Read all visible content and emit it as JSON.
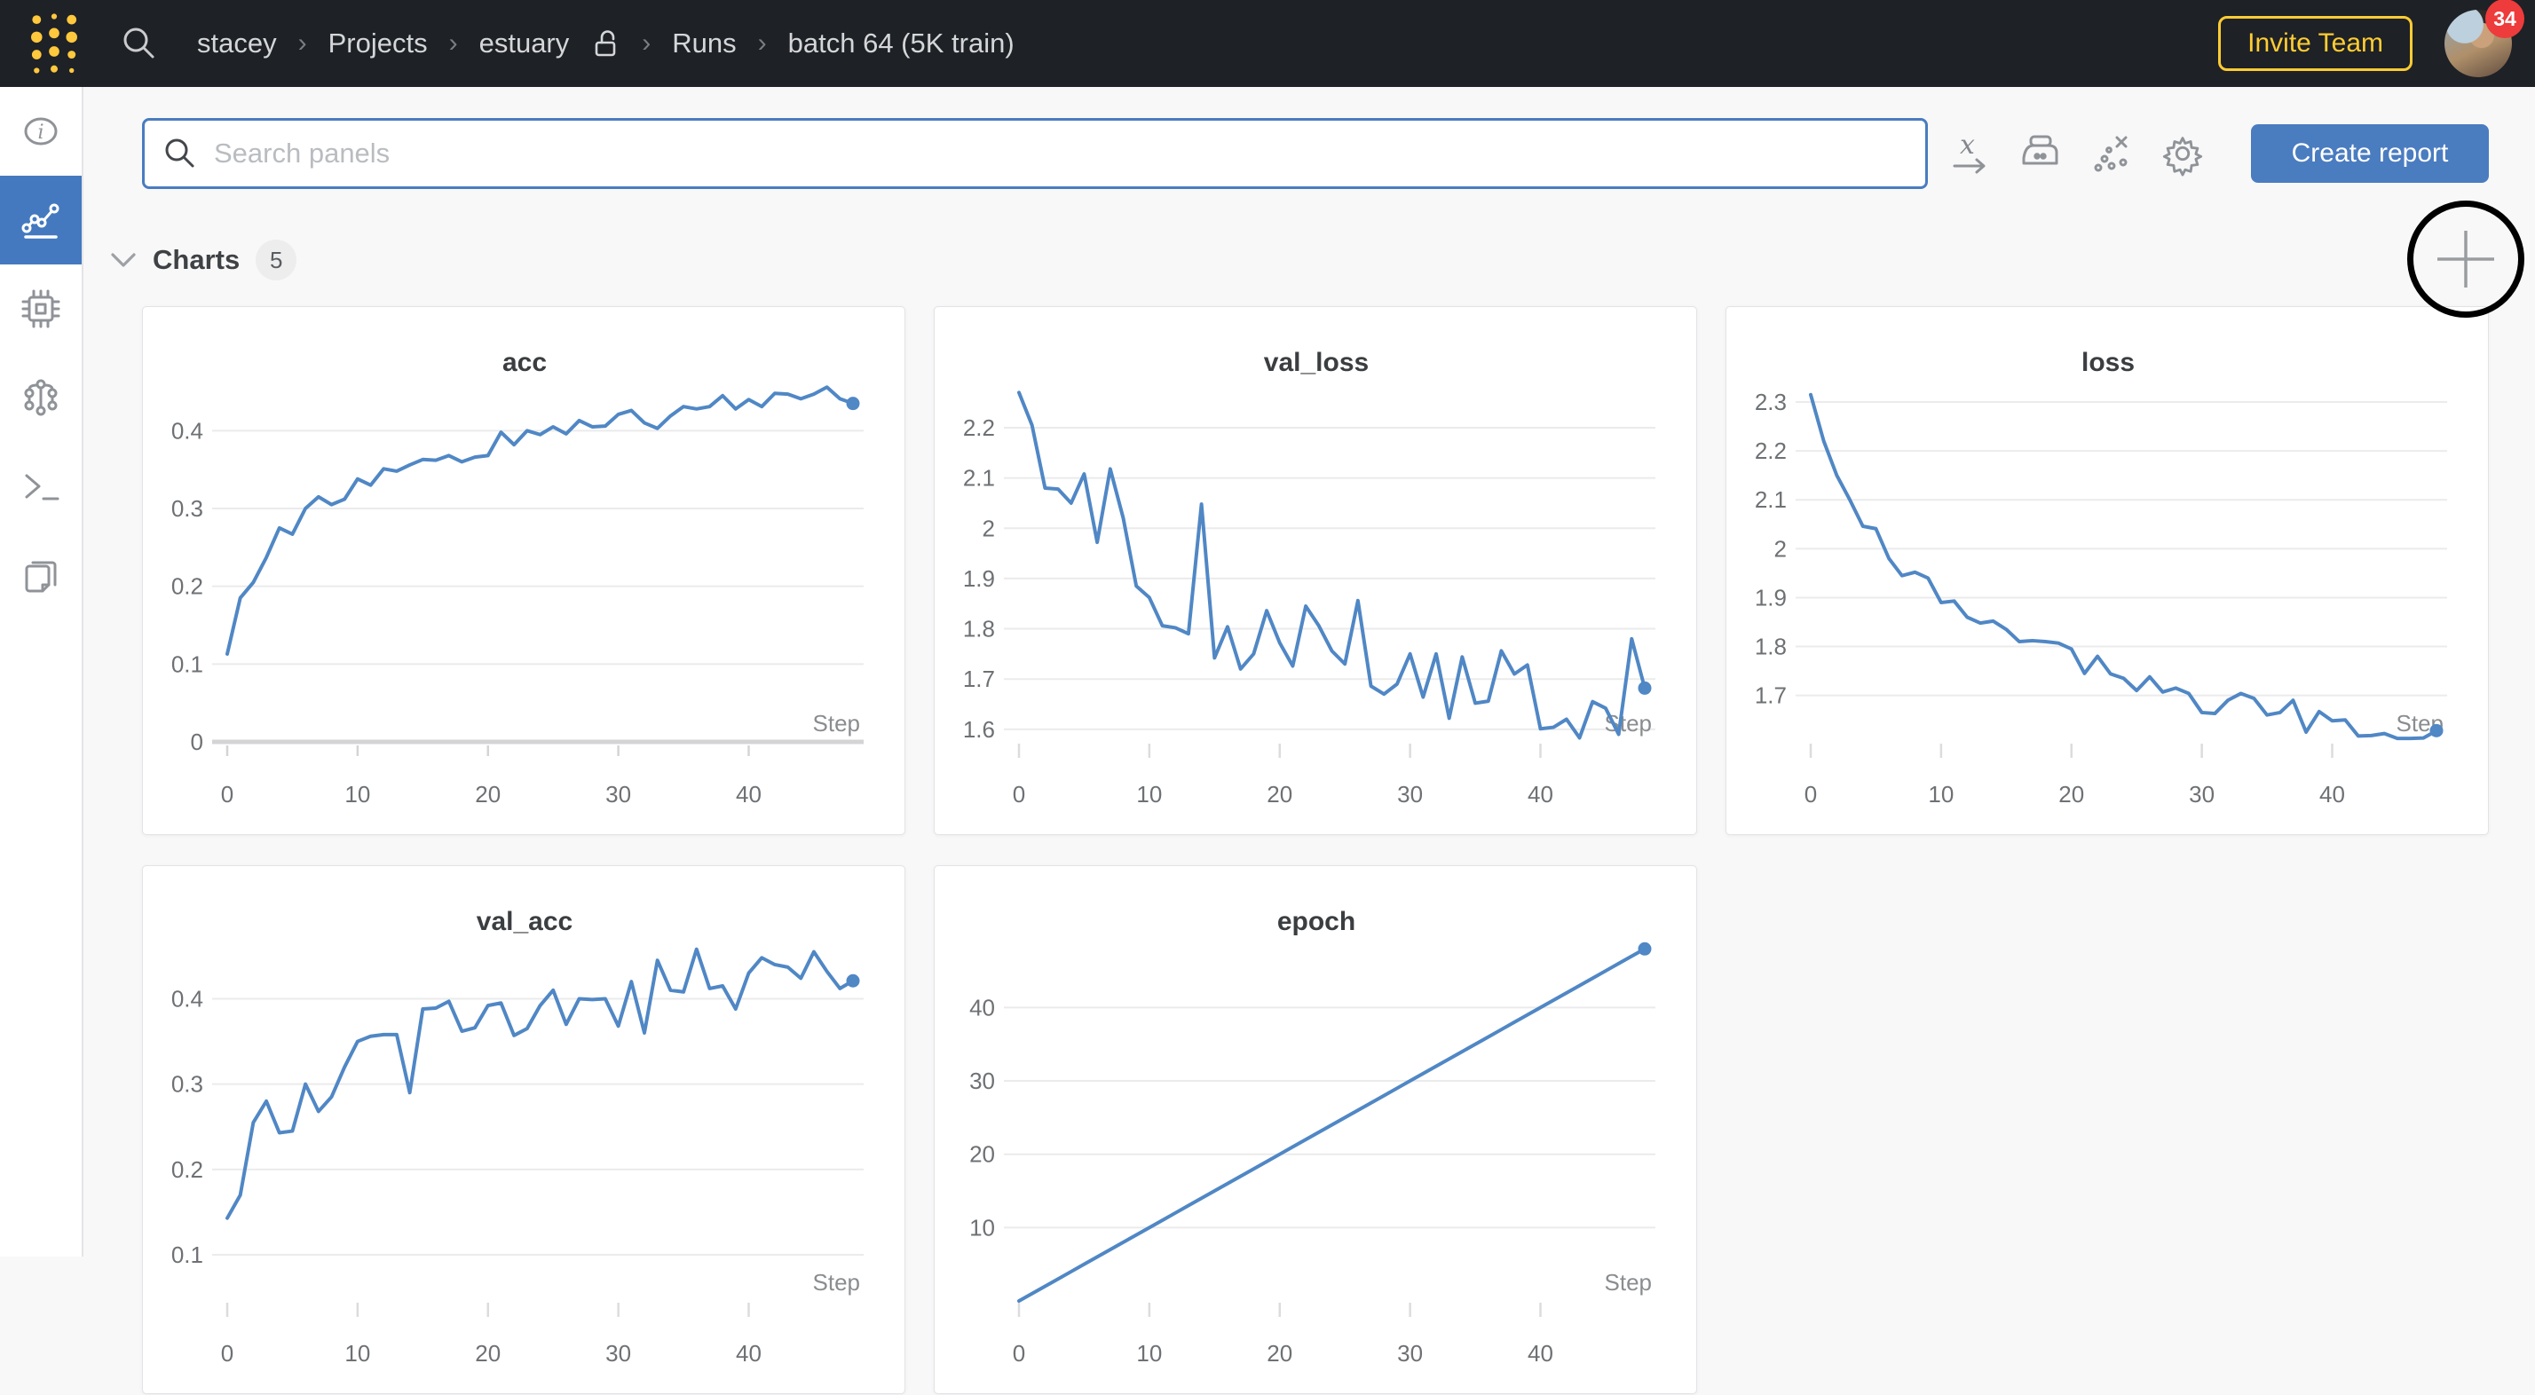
{
  "navbar": {
    "breadcrumb": [
      "stacey",
      "Projects",
      "estuary",
      "Runs",
      "batch 64 (5K train)"
    ],
    "separator": "›",
    "invite_button_label": "Invite Team",
    "notification_count": "34"
  },
  "toolbar": {
    "search_placeholder": "Search panels",
    "create_report_label": "Create report",
    "icon_names": [
      "x-axis",
      "smoothing",
      "outliers",
      "panel-settings"
    ]
  },
  "charts_section": {
    "title": "Charts",
    "panel_count": "5"
  },
  "sidebar": {
    "items": [
      "info",
      "charts",
      "system",
      "model",
      "logs",
      "files"
    ],
    "selected": "charts"
  },
  "colors": {
    "navbar_bg": "#1e2126",
    "brand_gold": "#ffcc33",
    "badge_red": "#ee3b3b",
    "accent_blue": "#4a7cc0",
    "chart_line_blue": "#5087c5",
    "content_bg": "#f8f8f9"
  },
  "chart_data": [
    {
      "type": "line",
      "title": "acc",
      "xlabel": "Step",
      "x_start": 0,
      "x_end": 48,
      "xticks": [
        0,
        10,
        20,
        30,
        40
      ],
      "ylim": [
        0,
        0.462
      ],
      "yticks": [
        0,
        0.1,
        0.2,
        0.3,
        0.4
      ],
      "baseline": 0,
      "grid": true,
      "legend": "none",
      "end_dot": true,
      "values": [
        0.113,
        0.185,
        0.205,
        0.237,
        0.275,
        0.267,
        0.3,
        0.315,
        0.305,
        0.312,
        0.338,
        0.33,
        0.351,
        0.348,
        0.356,
        0.363,
        0.362,
        0.368,
        0.36,
        0.366,
        0.368,
        0.398,
        0.382,
        0.4,
        0.395,
        0.405,
        0.396,
        0.413,
        0.405,
        0.406,
        0.421,
        0.426,
        0.41,
        0.403,
        0.419,
        0.431,
        0.428,
        0.431,
        0.445,
        0.428,
        0.44,
        0.431,
        0.448,
        0.447,
        0.441,
        0.447,
        0.456,
        0.441,
        0.435
      ]
    },
    {
      "type": "line",
      "title": "val_loss",
      "xlabel": "Step",
      "x_start": 0,
      "x_end": 48,
      "xticks": [
        0,
        10,
        20,
        30,
        40
      ],
      "ylim": [
        1.575,
        2.29
      ],
      "yticks": [
        1.6,
        1.7,
        1.8,
        1.9,
        2,
        2.1,
        2.2
      ],
      "grid": true,
      "legend": "none",
      "end_dot": true,
      "values": [
        2.27,
        2.205,
        2.08,
        2.078,
        2.05,
        2.108,
        1.972,
        2.118,
        2.02,
        1.885,
        1.862,
        1.806,
        1.802,
        1.79,
        2.048,
        1.742,
        1.804,
        1.72,
        1.75,
        1.836,
        1.772,
        1.726,
        1.845,
        1.806,
        1.756,
        1.73,
        1.856,
        1.686,
        1.67,
        1.69,
        1.75,
        1.664,
        1.75,
        1.622,
        1.744,
        1.652,
        1.656,
        1.756,
        1.71,
        1.728,
        1.601,
        1.604,
        1.62,
        1.583,
        1.655,
        1.642,
        1.59,
        1.78,
        1.682
      ]
    },
    {
      "type": "line",
      "title": "loss",
      "xlabel": "Step",
      "x_start": 0,
      "x_end": 48,
      "xticks": [
        0,
        10,
        20,
        30,
        40
      ],
      "ylim": [
        1.605,
        2.34
      ],
      "yticks": [
        1.7,
        1.8,
        1.9,
        2,
        2.1,
        2.2,
        2.3
      ],
      "grid": true,
      "legend": "none",
      "end_dot": true,
      "values": [
        2.315,
        2.22,
        2.15,
        2.1,
        2.046,
        2.041,
        1.98,
        1.945,
        1.952,
        1.94,
        1.89,
        1.893,
        1.86,
        1.848,
        1.852,
        1.835,
        1.81,
        1.812,
        1.81,
        1.807,
        1.795,
        1.745,
        1.78,
        1.744,
        1.735,
        1.71,
        1.738,
        1.707,
        1.715,
        1.704,
        1.665,
        1.663,
        1.69,
        1.704,
        1.694,
        1.66,
        1.665,
        1.69,
        1.625,
        1.667,
        1.648,
        1.65,
        1.617,
        1.618,
        1.622,
        1.612,
        1.612,
        1.613,
        1.628
      ]
    },
    {
      "type": "line",
      "title": "val_acc",
      "xlabel": "Step",
      "x_start": 0,
      "x_end": 48,
      "xticks": [
        0,
        10,
        20,
        30,
        40
      ],
      "ylim": [
        0.046,
        0.467
      ],
      "yticks": [
        0.1,
        0.2,
        0.3,
        0.4
      ],
      "grid": true,
      "legend": "none",
      "end_dot": true,
      "values": [
        0.143,
        0.17,
        0.255,
        0.28,
        0.243,
        0.245,
        0.3,
        0.268,
        0.285,
        0.32,
        0.35,
        0.356,
        0.358,
        0.358,
        0.29,
        0.388,
        0.389,
        0.397,
        0.362,
        0.366,
        0.392,
        0.395,
        0.357,
        0.365,
        0.392,
        0.41,
        0.37,
        0.4,
        0.399,
        0.4,
        0.368,
        0.42,
        0.36,
        0.445,
        0.41,
        0.408,
        0.458,
        0.412,
        0.415,
        0.388,
        0.43,
        0.448,
        0.44,
        0.437,
        0.424,
        0.455,
        0.432,
        0.412,
        0.421
      ]
    },
    {
      "type": "line",
      "title": "epoch",
      "xlabel": "Step",
      "x_start": 0,
      "x_end": 48,
      "xticks": [
        0,
        10,
        20,
        30,
        40
      ],
      "ylim": [
        0,
        49
      ],
      "yticks": [
        10,
        20,
        30,
        40
      ],
      "grid": true,
      "legend": "none",
      "end_dot": true,
      "values": [
        0,
        1,
        2,
        3,
        4,
        5,
        6,
        7,
        8,
        9,
        10,
        11,
        12,
        13,
        14,
        15,
        16,
        17,
        18,
        19,
        20,
        21,
        22,
        23,
        24,
        25,
        26,
        27,
        28,
        29,
        30,
        31,
        32,
        33,
        34,
        35,
        36,
        37,
        38,
        39,
        40,
        41,
        42,
        43,
        44,
        45,
        46,
        47,
        48
      ]
    }
  ]
}
